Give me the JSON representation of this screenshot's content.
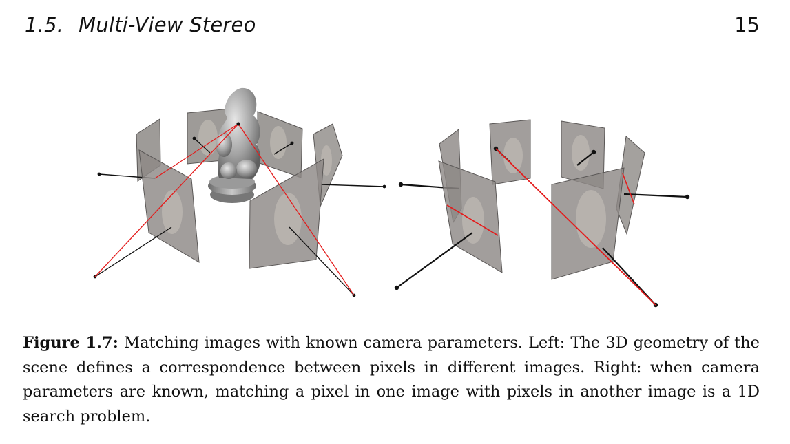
{
  "header": {
    "section_number": "1.5.",
    "section_title": "Multi-View Stereo",
    "page_number": "15"
  },
  "figure": {
    "caption_label": "Figure 1.7:",
    "caption_text": "Matching images with known camera parameters. Left: The 3D geometry of the scene defines a correspondence between pixels in different images. Right: when camera parameters are known, matching a pixel in one image with pixels in another image is a 1D search problem."
  },
  "colors": {
    "ray_red": "#e41b1b",
    "ray_black": "#111111",
    "image_plane": "#8d8986",
    "statue": "#a7a7a7"
  }
}
